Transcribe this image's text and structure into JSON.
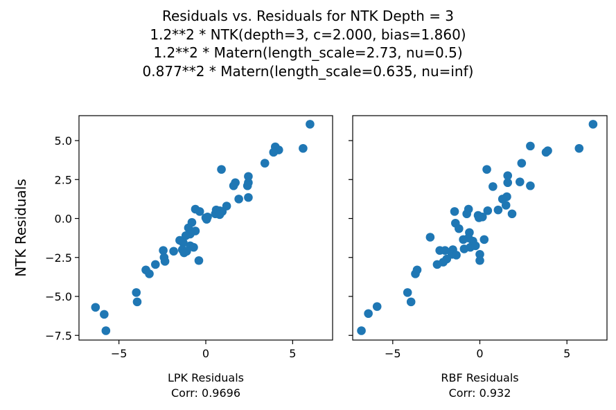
{
  "title_lines": [
    "Residuals vs. Residuals for NTK Depth = 3",
    "1.2**2 * NTK(depth=3, c=2.000, bias=1.860)",
    "1.2**2 * Matern(length_scale=2.73, nu=0.5)",
    "0.877**2 * Matern(length_scale=0.635, nu=inf)"
  ],
  "colors": {
    "point": "#1f77b4",
    "axis": "#000000"
  },
  "chart_data": [
    {
      "type": "scatter",
      "xlabel": "LPK Residuals",
      "xlabel2": "Corr: 0.9696",
      "ylabel": "NTK Residuals",
      "xlim": [
        -7.3,
        7.3
      ],
      "ylim": [
        -7.8,
        6.6
      ],
      "xticks": [
        -5,
        0,
        5
      ],
      "xtick_labels": [
        "−5",
        "0",
        "5"
      ],
      "yticks": [
        -7.5,
        -5.0,
        -2.5,
        0.0,
        2.5,
        5.0
      ],
      "ytick_labels": [
        "−7.5",
        "−5.0",
        "−2.5",
        "0.0",
        "2.5",
        "5.0"
      ],
      "points": [
        [
          6.0,
          6.05
        ],
        [
          4.0,
          4.6
        ],
        [
          4.2,
          4.4
        ],
        [
          3.9,
          4.25
        ],
        [
          5.6,
          4.5
        ],
        [
          3.4,
          3.55
        ],
        [
          0.9,
          3.15
        ],
        [
          1.7,
          2.3
        ],
        [
          1.6,
          2.1
        ],
        [
          2.45,
          2.7
        ],
        [
          2.45,
          2.3
        ],
        [
          2.4,
          2.1
        ],
        [
          1.9,
          1.25
        ],
        [
          2.45,
          1.35
        ],
        [
          1.2,
          0.8
        ],
        [
          0.6,
          0.55
        ],
        [
          0.8,
          0.5
        ],
        [
          0.95,
          0.45
        ],
        [
          0.55,
          0.3
        ],
        [
          0.8,
          0.25
        ],
        [
          0.1,
          0.1
        ],
        [
          0.0,
          0.05
        ],
        [
          0.05,
          -0.05
        ],
        [
          -0.6,
          0.6
        ],
        [
          -0.35,
          0.45
        ],
        [
          -0.8,
          -0.25
        ],
        [
          -1.0,
          -0.6
        ],
        [
          -0.6,
          -0.8
        ],
        [
          -0.9,
          -1.0
        ],
        [
          -1.15,
          -1.1
        ],
        [
          -1.5,
          -1.4
        ],
        [
          -1.3,
          -1.55
        ],
        [
          -0.9,
          -1.75
        ],
        [
          -0.7,
          -1.85
        ],
        [
          -1.35,
          -2.0
        ],
        [
          -1.1,
          -2.1
        ],
        [
          -1.85,
          -2.1
        ],
        [
          -1.25,
          -2.2
        ],
        [
          -2.45,
          -2.05
        ],
        [
          -2.4,
          -2.5
        ],
        [
          -2.35,
          -2.75
        ],
        [
          -0.4,
          -2.7
        ],
        [
          -2.9,
          -2.95
        ],
        [
          -3.45,
          -3.3
        ],
        [
          -3.25,
          -3.55
        ],
        [
          -4.0,
          -4.75
        ],
        [
          -3.95,
          -5.35
        ],
        [
          -6.35,
          -5.7
        ],
        [
          -5.85,
          -6.15
        ],
        [
          -5.75,
          -7.2
        ]
      ]
    },
    {
      "type": "scatter",
      "xlabel": "RBF Residuals",
      "xlabel2": "Corr: 0.932",
      "xlim": [
        -7.3,
        7.3
      ],
      "ylim": [
        -7.8,
        6.6
      ],
      "xticks": [
        -5,
        0,
        5
      ],
      "xtick_labels": [
        "−5",
        "0",
        "5"
      ],
      "yticks": [
        -7.5,
        -5.0,
        -2.5,
        0.0,
        2.5,
        5.0
      ],
      "points": [
        [
          6.5,
          6.05
        ],
        [
          2.9,
          4.65
        ],
        [
          3.9,
          4.35
        ],
        [
          3.8,
          4.25
        ],
        [
          5.7,
          4.5
        ],
        [
          2.4,
          3.55
        ],
        [
          0.4,
          3.15
        ],
        [
          1.6,
          2.75
        ],
        [
          2.3,
          2.35
        ],
        [
          1.6,
          2.3
        ],
        [
          0.75,
          2.05
        ],
        [
          2.9,
          2.1
        ],
        [
          1.55,
          1.4
        ],
        [
          1.3,
          1.25
        ],
        [
          1.5,
          0.85
        ],
        [
          1.85,
          0.3
        ],
        [
          1.05,
          0.55
        ],
        [
          0.45,
          0.5
        ],
        [
          -1.45,
          0.45
        ],
        [
          -0.65,
          0.6
        ],
        [
          -0.75,
          0.3
        ],
        [
          -0.1,
          0.2
        ],
        [
          0.15,
          0.1
        ],
        [
          -0.05,
          0.05
        ],
        [
          -1.4,
          -0.3
        ],
        [
          -1.2,
          -0.65
        ],
        [
          -0.6,
          -0.9
        ],
        [
          -0.65,
          -1.25
        ],
        [
          -0.4,
          -1.45
        ],
        [
          -0.95,
          -1.35
        ],
        [
          0.25,
          -1.35
        ],
        [
          -2.85,
          -1.2
        ],
        [
          -0.55,
          -1.85
        ],
        [
          -0.9,
          -1.95
        ],
        [
          -0.25,
          -1.75
        ],
        [
          -1.55,
          -2.0
        ],
        [
          -1.6,
          -2.3
        ],
        [
          -2.3,
          -2.05
        ],
        [
          -2.0,
          -2.05
        ],
        [
          -1.9,
          -2.6
        ],
        [
          -2.1,
          -2.8
        ],
        [
          -1.35,
          -2.35
        ],
        [
          0.0,
          -2.3
        ],
        [
          0.0,
          -2.7
        ],
        [
          -2.45,
          -2.95
        ],
        [
          -3.6,
          -3.3
        ],
        [
          -3.7,
          -3.55
        ],
        [
          -4.15,
          -4.75
        ],
        [
          -3.95,
          -5.35
        ],
        [
          -5.9,
          -5.65
        ],
        [
          -6.4,
          -6.1
        ],
        [
          -6.8,
          -7.2
        ]
      ]
    }
  ]
}
